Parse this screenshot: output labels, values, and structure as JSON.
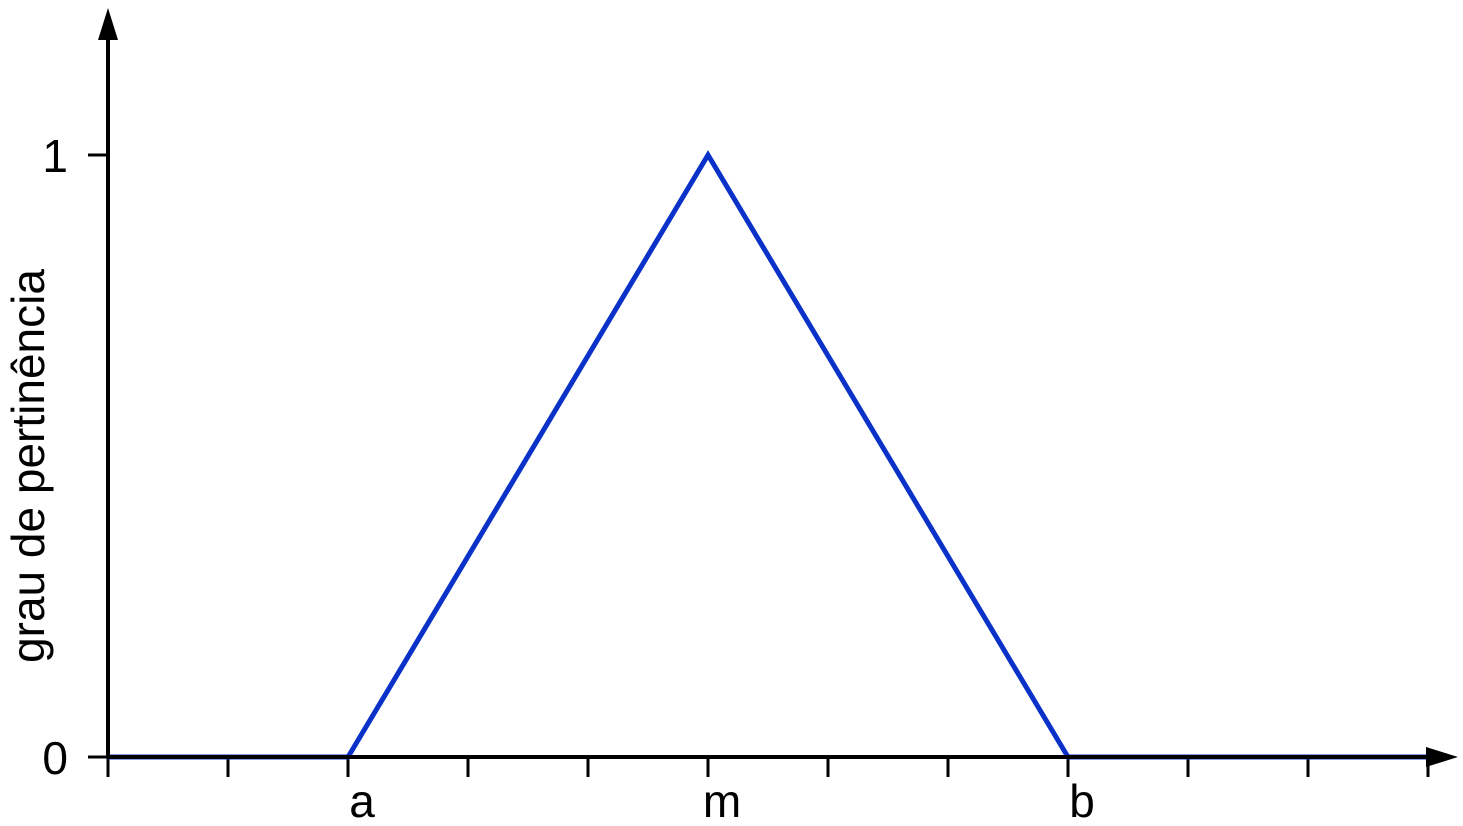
{
  "chart_data": {
    "type": "line",
    "title": "",
    "xlabel": "",
    "ylabel": "grau de pertinência",
    "xlim": [
      0,
      11
    ],
    "ylim": [
      0,
      1
    ],
    "x_ticks": [
      0,
      1,
      2,
      3,
      4,
      5,
      6,
      7,
      8,
      9,
      10,
      11
    ],
    "x_tick_labels": [
      {
        "x": 2,
        "label": "a"
      },
      {
        "x": 5,
        "label": "m"
      },
      {
        "x": 8,
        "label": "b"
      }
    ],
    "y_ticks": [
      {
        "y": 0,
        "label": "0"
      },
      {
        "y": 1,
        "label": "1"
      }
    ],
    "grid": false,
    "legend": "none",
    "series": [
      {
        "color": "#0a32c8",
        "x": [
          0,
          2,
          5,
          8,
          11
        ],
        "y": [
          0,
          0,
          1,
          0,
          0
        ]
      }
    ]
  }
}
